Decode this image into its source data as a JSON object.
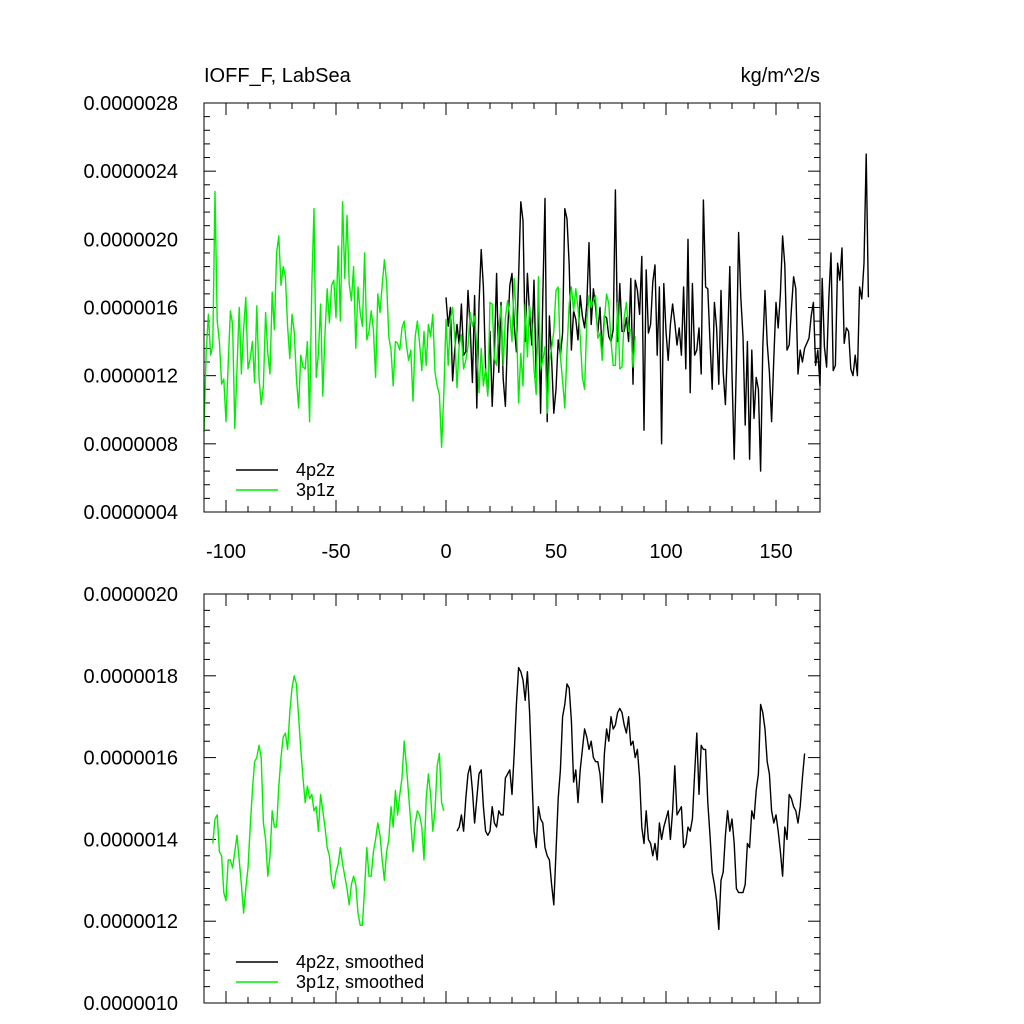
{
  "chart_data": [
    {
      "type": "line",
      "title": "IOFF_F, LabSea",
      "units": "kg/m^2/s",
      "xlabel": "",
      "ylabel": "",
      "xlim": [
        -110,
        170
      ],
      "ylim": [
        4e-07,
        2.8e-06
      ],
      "x_ticks": [
        -100,
        -50,
        0,
        50,
        100,
        150
      ],
      "x_tick_labels": [
        "-100",
        "-50",
        "0",
        "50",
        "100",
        "150"
      ],
      "y_ticks": [
        4e-07,
        8e-07,
        1.2e-06,
        1.6e-06,
        2e-06,
        2.4e-06,
        2.8e-06
      ],
      "y_tick_labels": [
        "0.0000004",
        "0.0000008",
        "0.0000012",
        "0.0000016",
        "0.0000020",
        "0.0000024",
        "0.0000028"
      ],
      "legend_position": "bottom-left",
      "legend": [
        "4p2z",
        "3p1z"
      ],
      "series": [
        {
          "name": "4p2z",
          "color": "#000000",
          "x_start": 0,
          "x_step": 1,
          "values": [
            1.66e-06,
            1.49e-06,
            1.6e-06,
            1.17e-06,
            1.36e-06,
            1.5e-06,
            1.38e-06,
            1.62e-06,
            1.32e-06,
            1.34e-06,
            1.7e-06,
            1.48e-06,
            1.16e-06,
            1.67e-06,
            1.01e-06,
            1.62e-06,
            1.94e-06,
            1.72e-06,
            1.24e-06,
            1.09e-06,
            1.46e-06,
            1.02e-06,
            1.33e-06,
            1.8e-06,
            1.22e-06,
            1.63e-06,
            1.18e-06,
            1.02e-06,
            1.45e-06,
            1.73e-06,
            1.8e-06,
            1.5e-06,
            1.34e-06,
            1.78e-06,
            2.22e-06,
            2.11e-06,
            1.4e-06,
            1.8e-06,
            1.56e-06,
            1.38e-06,
            1.76e-06,
            1.19e-06,
            1.62e-06,
            9.8e-07,
            1.66e-06,
            2.24e-06,
            9.3e-07,
            1.55e-06,
            1.3e-06,
            9.8e-07,
            1.12e-06,
            1.41e-06,
            1.32e-06,
            1.45e-06,
            2.18e-06,
            2.12e-06,
            1.85e-06,
            1.35e-06,
            1.58e-06,
            1.53e-06,
            1.41e-06,
            1.67e-06,
            1.55e-06,
            1.48e-06,
            1.62e-06,
            1.98e-06,
            1.5e-06,
            1.71e-06,
            1.6e-06,
            1.45e-06,
            1.6e-06,
            1.34e-06,
            1.55e-06,
            1.54e-06,
            1.43e-06,
            1.4e-06,
            1.47e-06,
            2.29e-06,
            1.4e-06,
            1.74e-06,
            1.46e-06,
            1.46e-06,
            1.54e-06,
            1.4e-06,
            1.77e-06,
            1.15e-06,
            1.76e-06,
            1.7e-06,
            1.56e-06,
            1.9e-06,
            8.8e-07,
            1.82e-06,
            1.45e-06,
            1.5e-06,
            1.75e-06,
            1.85e-06,
            1.32e-06,
            1.72e-06,
            8e-07,
            1.74e-06,
            1.46e-06,
            1.29e-06,
            1.5e-06,
            1.62e-06,
            1.51e-06,
            1.38e-06,
            1.48e-06,
            1.32e-06,
            1.72e-06,
            1.24e-06,
            2e-06,
            1.1e-06,
            1.74e-06,
            1.32e-06,
            1.35e-06,
            1.48e-06,
            1.21e-06,
            2.23e-06,
            1.72e-06,
            1.71e-06,
            1.4e-06,
            1.12e-06,
            1.63e-06,
            1.48e-06,
            1.15e-06,
            1.7e-06,
            1.22e-06,
            1.03e-06,
            1.39e-06,
            1.84e-06,
            1.21e-06,
            7.1e-07,
            1.28e-06,
            2.04e-06,
            1.66e-06,
            1.43e-06,
            9.1e-07,
            1.4e-06,
            7.1e-07,
            1.35e-06,
            9.5e-07,
            1.19e-06,
            1.12e-06,
            6.4e-07,
            1.37e-06,
            1.7e-06,
            1.39e-06,
            1.22e-06,
            9.3e-07,
            1.3e-06,
            1.63e-06,
            1.48e-06,
            1.68e-06,
            2.02e-06,
            1.85e-06,
            1.35e-06,
            1.38e-06,
            1.59e-06,
            1.78e-06,
            1.71e-06,
            1.21e-06,
            1.35e-06,
            1.28e-06,
            1.36e-06,
            1.39e-06,
            1.42e-06,
            1.55e-06,
            1.63e-06,
            1.26e-06,
            1.35e-06,
            1.14e-06,
            1.77e-06,
            1.37e-06,
            1.25e-06,
            1.65e-06,
            1.92e-06,
            1.23e-06,
            1.26e-06,
            1.86e-06,
            1.76e-06,
            1.95e-06,
            1.39e-06,
            1.48e-06,
            1.46e-06,
            1.24e-06,
            1.2e-06,
            1.32e-06,
            1.2e-06,
            1.72e-06,
            1.65e-06,
            1.86e-06,
            2.5e-06,
            1.66e-06
          ]
        },
        {
          "name": "3p1z",
          "color": "#00ee00",
          "x_start": -110,
          "x_step": 1,
          "values": [
            8.7e-07,
            1.34e-06,
            1.56e-06,
            1.32e-06,
            1.38e-06,
            2.28e-06,
            1.52e-06,
            1.4e-06,
            1.15e-06,
            1.18e-06,
            9.3e-07,
            1.27e-06,
            1.58e-06,
            1.5e-06,
            8.9e-07,
            1.24e-06,
            1.6e-06,
            1.21e-06,
            1.47e-06,
            1.66e-06,
            1.24e-06,
            1.3e-06,
            1.4e-06,
            1.16e-06,
            1.61e-06,
            1.19e-06,
            1.03e-06,
            1.14e-06,
            1.57e-06,
            1.33e-06,
            1.21e-06,
            1.69e-06,
            1.47e-06,
            1.92e-06,
            2.02e-06,
            1.73e-06,
            1.84e-06,
            1.78e-06,
            1.49e-06,
            1.3e-06,
            1.56e-06,
            1.46e-06,
            1.19e-06,
            1.01e-06,
            1.32e-06,
            1.25e-06,
            1.24e-06,
            1.4e-06,
            9.3e-07,
            1.73e-06,
            2.18e-06,
            1.19e-06,
            1.33e-06,
            1.62e-06,
            1.08e-06,
            1.45e-06,
            1.71e-06,
            1.51e-06,
            1.73e-06,
            1.76e-06,
            1.54e-06,
            1.96e-06,
            1.52e-06,
            2.22e-06,
            1.77e-06,
            2.14e-06,
            1.74e-06,
            1.64e-06,
            1.84e-06,
            1.36e-06,
            1.72e-06,
            1.57e-06,
            1.49e-06,
            1.92e-06,
            1.41e-06,
            1.46e-06,
            1.58e-06,
            1.47e-06,
            1.19e-06,
            1.68e-06,
            1.57e-06,
            1.73e-06,
            1.88e-06,
            1.75e-06,
            1.43e-06,
            1.35e-06,
            1.14e-06,
            1.4e-06,
            1.39e-06,
            1.35e-06,
            1.48e-06,
            1.52e-06,
            1.38e-06,
            1.29e-06,
            1.35e-06,
            1.05e-06,
            1.43e-06,
            1.52e-06,
            1.39e-06,
            1.23e-06,
            1.46e-06,
            1.26e-06,
            1.5e-06,
            1.43e-06,
            1.56e-06,
            1.22e-06,
            1.14e-06,
            1.09e-06,
            7.8e-07,
            1.09e-06,
            1.53e-06,
            1.26e-06,
            1.53e-06,
            1.6e-06,
            1.43e-06,
            1.13e-06,
            1.38e-06,
            1.44e-06,
            1.24e-06,
            1.29e-06,
            1.37e-06,
            1.57e-06,
            1.49e-06,
            1.55e-06,
            1.37e-06,
            1.1e-06,
            1.36e-06,
            1.14e-06,
            1.24e-06,
            1.08e-06,
            1.63e-06,
            1.62e-06,
            1.3e-06,
            1.26e-06,
            1.48e-06,
            1.61e-06,
            1.26e-06,
            1.54e-06,
            1.64e-06,
            1.55e-06,
            1.4e-06,
            1.77e-06,
            1.53e-06,
            1.04e-06,
            1.33e-06,
            1.14e-06,
            1.62e-06,
            1.31e-06,
            1.61e-06,
            1.5e-06,
            1.24e-06,
            1.09e-06,
            1.78e-06,
            1.24e-06,
            1.29e-06,
            1.37e-06,
            9.8e-07,
            1.28e-06,
            1.36e-06,
            1.46e-06,
            1.7e-06,
            1.72e-06,
            1.31e-06,
            1.17e-06,
            1.01e-06,
            1.35e-06,
            1.62e-06,
            1.72e-06,
            1.58e-06,
            1.71e-06,
            1.6e-06,
            1.43e-06,
            1.19e-06,
            1.12e-06,
            1.52e-06,
            1.67e-06,
            1.6e-06,
            1.64e-06,
            1.67e-06,
            1.42e-06,
            1.45e-06,
            1.29e-06,
            1.53e-06,
            1.68e-06,
            1.62e-06,
            1.4e-06,
            1.26e-06,
            1.26e-06,
            1.63e-06,
            1.24e-06,
            1.25e-06,
            1.54e-06,
            1.63e-06,
            1.46e-06,
            1.47e-06,
            1.25e-06,
            1.43e-06
          ]
        }
      ]
    },
    {
      "type": "line",
      "title": "",
      "xlabel": "",
      "ylabel": "",
      "xlim": [
        -110,
        170
      ],
      "ylim": [
        1e-06,
        2e-06
      ],
      "x_ticks": [
        -100,
        -50,
        0,
        50,
        100,
        150
      ],
      "y_ticks": [
        1e-06,
        1.2e-06,
        1.4e-06,
        1.6e-06,
        1.8e-06,
        2e-06
      ],
      "y_tick_labels": [
        "0.0000010",
        "0.0000012",
        "0.0000014",
        "0.0000016",
        "0.0000018",
        "0.0000020"
      ],
      "legend_position": "bottom-left",
      "legend": [
        "4p2z, smoothed",
        "3p1z, smoothed"
      ],
      "series": [
        {
          "name": "4p2z, smoothed",
          "color": "#000000",
          "x_start": 5,
          "x_step": 1,
          "values": [
            1.42e-06,
            1.43e-06,
            1.46e-06,
            1.42e-06,
            1.5e-06,
            1.56e-06,
            1.58e-06,
            1.52e-06,
            1.44e-06,
            1.5e-06,
            1.56e-06,
            1.57e-06,
            1.48e-06,
            1.42e-06,
            1.41e-06,
            1.42e-06,
            1.48e-06,
            1.44e-06,
            1.43e-06,
            1.47e-06,
            1.46e-06,
            1.46e-06,
            1.55e-06,
            1.56e-06,
            1.57e-06,
            1.51e-06,
            1.61e-06,
            1.73e-06,
            1.82e-06,
            1.81e-06,
            1.79e-06,
            1.74e-06,
            1.81e-06,
            1.71e-06,
            1.56e-06,
            1.42e-06,
            1.38e-06,
            1.48e-06,
            1.45e-06,
            1.44e-06,
            1.38e-06,
            1.36e-06,
            1.35e-06,
            1.29e-06,
            1.24e-06,
            1.37e-06,
            1.5e-06,
            1.57e-06,
            1.7e-06,
            1.73e-06,
            1.78e-06,
            1.77e-06,
            1.69e-06,
            1.54e-06,
            1.57e-06,
            1.49e-06,
            1.57e-06,
            1.62e-06,
            1.67e-06,
            1.65e-06,
            1.62e-06,
            1.64e-06,
            1.6e-06,
            1.59e-06,
            1.59e-06,
            1.56e-06,
            1.49e-06,
            1.61e-06,
            1.67e-06,
            1.64e-06,
            1.7e-06,
            1.67e-06,
            1.68e-06,
            1.71e-06,
            1.72e-06,
            1.71e-06,
            1.68e-06,
            1.66e-06,
            1.7e-06,
            1.63e-06,
            1.64e-06,
            1.6e-06,
            1.62e-06,
            1.55e-06,
            1.43e-06,
            1.39e-06,
            1.47e-06,
            1.4e-06,
            1.39e-06,
            1.36e-06,
            1.39e-06,
            1.35e-06,
            1.44e-06,
            1.4e-06,
            1.43e-06,
            1.45e-06,
            1.47e-06,
            1.4e-06,
            1.47e-06,
            1.58e-06,
            1.46e-06,
            1.47e-06,
            1.48e-06,
            1.38e-06,
            1.39e-06,
            1.43e-06,
            1.42e-06,
            1.45e-06,
            1.56e-06,
            1.66e-06,
            1.51e-06,
            1.63e-06,
            1.62e-06,
            1.62e-06,
            1.49e-06,
            1.41e-06,
            1.32e-06,
            1.29e-06,
            1.25e-06,
            1.18e-06,
            1.3e-06,
            1.32e-06,
            1.41e-06,
            1.47e-06,
            1.42e-06,
            1.45e-06,
            1.39e-06,
            1.28e-06,
            1.27e-06,
            1.27e-06,
            1.27e-06,
            1.29e-06,
            1.39e-06,
            1.38e-06,
            1.47e-06,
            1.45e-06,
            1.52e-06,
            1.56e-06,
            1.73e-06,
            1.71e-06,
            1.67e-06,
            1.59e-06,
            1.56e-06,
            1.47e-06,
            1.44e-06,
            1.46e-06,
            1.42e-06,
            1.37e-06,
            1.31e-06,
            1.43e-06,
            1.4e-06,
            1.51e-06,
            1.5e-06,
            1.48e-06,
            1.47e-06,
            1.44e-06,
            1.48e-06,
            1.55e-06,
            1.61e-06
          ]
        },
        {
          "name": "3p1z, smoothed",
          "color": "#00ee00",
          "x_start": -106,
          "x_step": 1,
          "values": [
            1.39e-06,
            1.45e-06,
            1.46e-06,
            1.37e-06,
            1.36e-06,
            1.27e-06,
            1.25e-06,
            1.35e-06,
            1.35e-06,
            1.33e-06,
            1.37e-06,
            1.41e-06,
            1.35e-06,
            1.29e-06,
            1.22e-06,
            1.28e-06,
            1.33e-06,
            1.43e-06,
            1.52e-06,
            1.59e-06,
            1.6e-06,
            1.63e-06,
            1.6e-06,
            1.44e-06,
            1.4e-06,
            1.31e-06,
            1.36e-06,
            1.47e-06,
            1.43e-06,
            1.43e-06,
            1.53e-06,
            1.6e-06,
            1.65e-06,
            1.66e-06,
            1.62e-06,
            1.71e-06,
            1.77e-06,
            1.8e-06,
            1.78e-06,
            1.7e-06,
            1.62e-06,
            1.55e-06,
            1.49e-06,
            1.53e-06,
            1.5e-06,
            1.51e-06,
            1.47e-06,
            1.48e-06,
            1.42e-06,
            1.51e-06,
            1.47e-06,
            1.43e-06,
            1.38e-06,
            1.36e-06,
            1.3e-06,
            1.28e-06,
            1.32e-06,
            1.34e-06,
            1.38e-06,
            1.34e-06,
            1.31e-06,
            1.28e-06,
            1.24e-06,
            1.29e-06,
            1.31e-06,
            1.29e-06,
            1.22e-06,
            1.19e-06,
            1.19e-06,
            1.28e-06,
            1.38e-06,
            1.31e-06,
            1.31e-06,
            1.37e-06,
            1.4e-06,
            1.44e-06,
            1.41e-06,
            1.35e-06,
            1.3e-06,
            1.37e-06,
            1.4e-06,
            1.48e-06,
            1.43e-06,
            1.52e-06,
            1.46e-06,
            1.51e-06,
            1.55e-06,
            1.64e-06,
            1.58e-06,
            1.51e-06,
            1.44e-06,
            1.37e-06,
            1.44e-06,
            1.47e-06,
            1.46e-06,
            1.43e-06,
            1.35e-06,
            1.5e-06,
            1.56e-06,
            1.51e-06,
            1.42e-06,
            1.47e-06,
            1.58e-06,
            1.61e-06,
            1.49e-06,
            1.47e-06
          ]
        }
      ]
    }
  ]
}
